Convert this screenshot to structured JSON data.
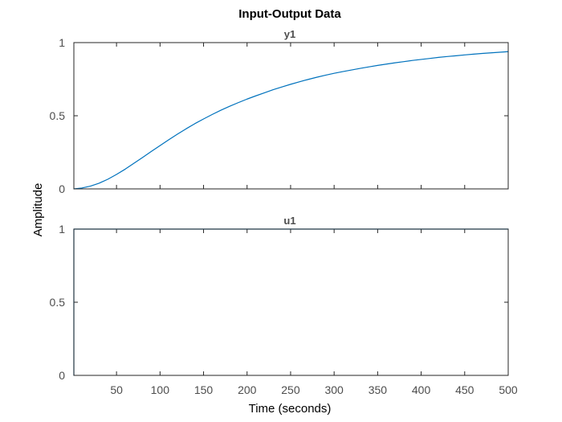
{
  "chart_data": {
    "type": "line",
    "title": "Input-Output Data",
    "xlabel": "Time (seconds)",
    "ylabel": "Amplitude",
    "xlim": [
      1,
      500
    ],
    "grid": false,
    "legend": "none",
    "x_ticks": [
      50,
      100,
      150,
      200,
      250,
      300,
      350,
      400,
      450,
      500
    ],
    "x_tick_labels": [
      "50",
      "100",
      "150",
      "200",
      "250",
      "300",
      "350",
      "400",
      "450",
      "500"
    ],
    "subplots": [
      {
        "title": "y1",
        "ylim": [
          0,
          1
        ],
        "y_ticks": [
          0,
          0.5,
          1
        ],
        "y_tick_labels": [
          "0",
          "0.5",
          "1"
        ],
        "series": [
          {
            "color": "#0072BD",
            "x": [
              1,
              10,
              20,
              30,
              40,
              50,
              60,
              70,
              80,
              90,
              100,
              110,
              120,
              130,
              140,
              150,
              160,
              170,
              180,
              190,
              200,
              210,
              220,
              230,
              240,
              250,
              260,
              270,
              280,
              290,
              300,
              310,
              320,
              330,
              340,
              350,
              360,
              370,
              380,
              390,
              400,
              410,
              420,
              430,
              440,
              450,
              460,
              470,
              480,
              490,
              500
            ],
            "y": [
              0.0,
              0.006,
              0.019,
              0.039,
              0.066,
              0.099,
              0.135,
              0.175,
              0.215,
              0.256,
              0.296,
              0.336,
              0.374,
              0.411,
              0.446,
              0.478,
              0.509,
              0.538,
              0.565,
              0.59,
              0.614,
              0.636,
              0.657,
              0.678,
              0.697,
              0.715,
              0.732,
              0.748,
              0.763,
              0.777,
              0.79,
              0.802,
              0.813,
              0.824,
              0.834,
              0.844,
              0.853,
              0.862,
              0.87,
              0.878,
              0.885,
              0.892,
              0.899,
              0.905,
              0.91,
              0.916,
              0.921,
              0.926,
              0.93,
              0.934,
              0.938
            ]
          }
        ]
      },
      {
        "title": "u1",
        "ylim": [
          0,
          1
        ],
        "y_ticks": [
          0,
          0.5,
          1
        ],
        "y_tick_labels": [
          "0",
          "0.5",
          "1"
        ],
        "series": [
          {
            "color": "#0072BD",
            "x": [
              1,
              1,
              500
            ],
            "y": [
              0,
              1,
              1
            ]
          }
        ]
      }
    ]
  }
}
